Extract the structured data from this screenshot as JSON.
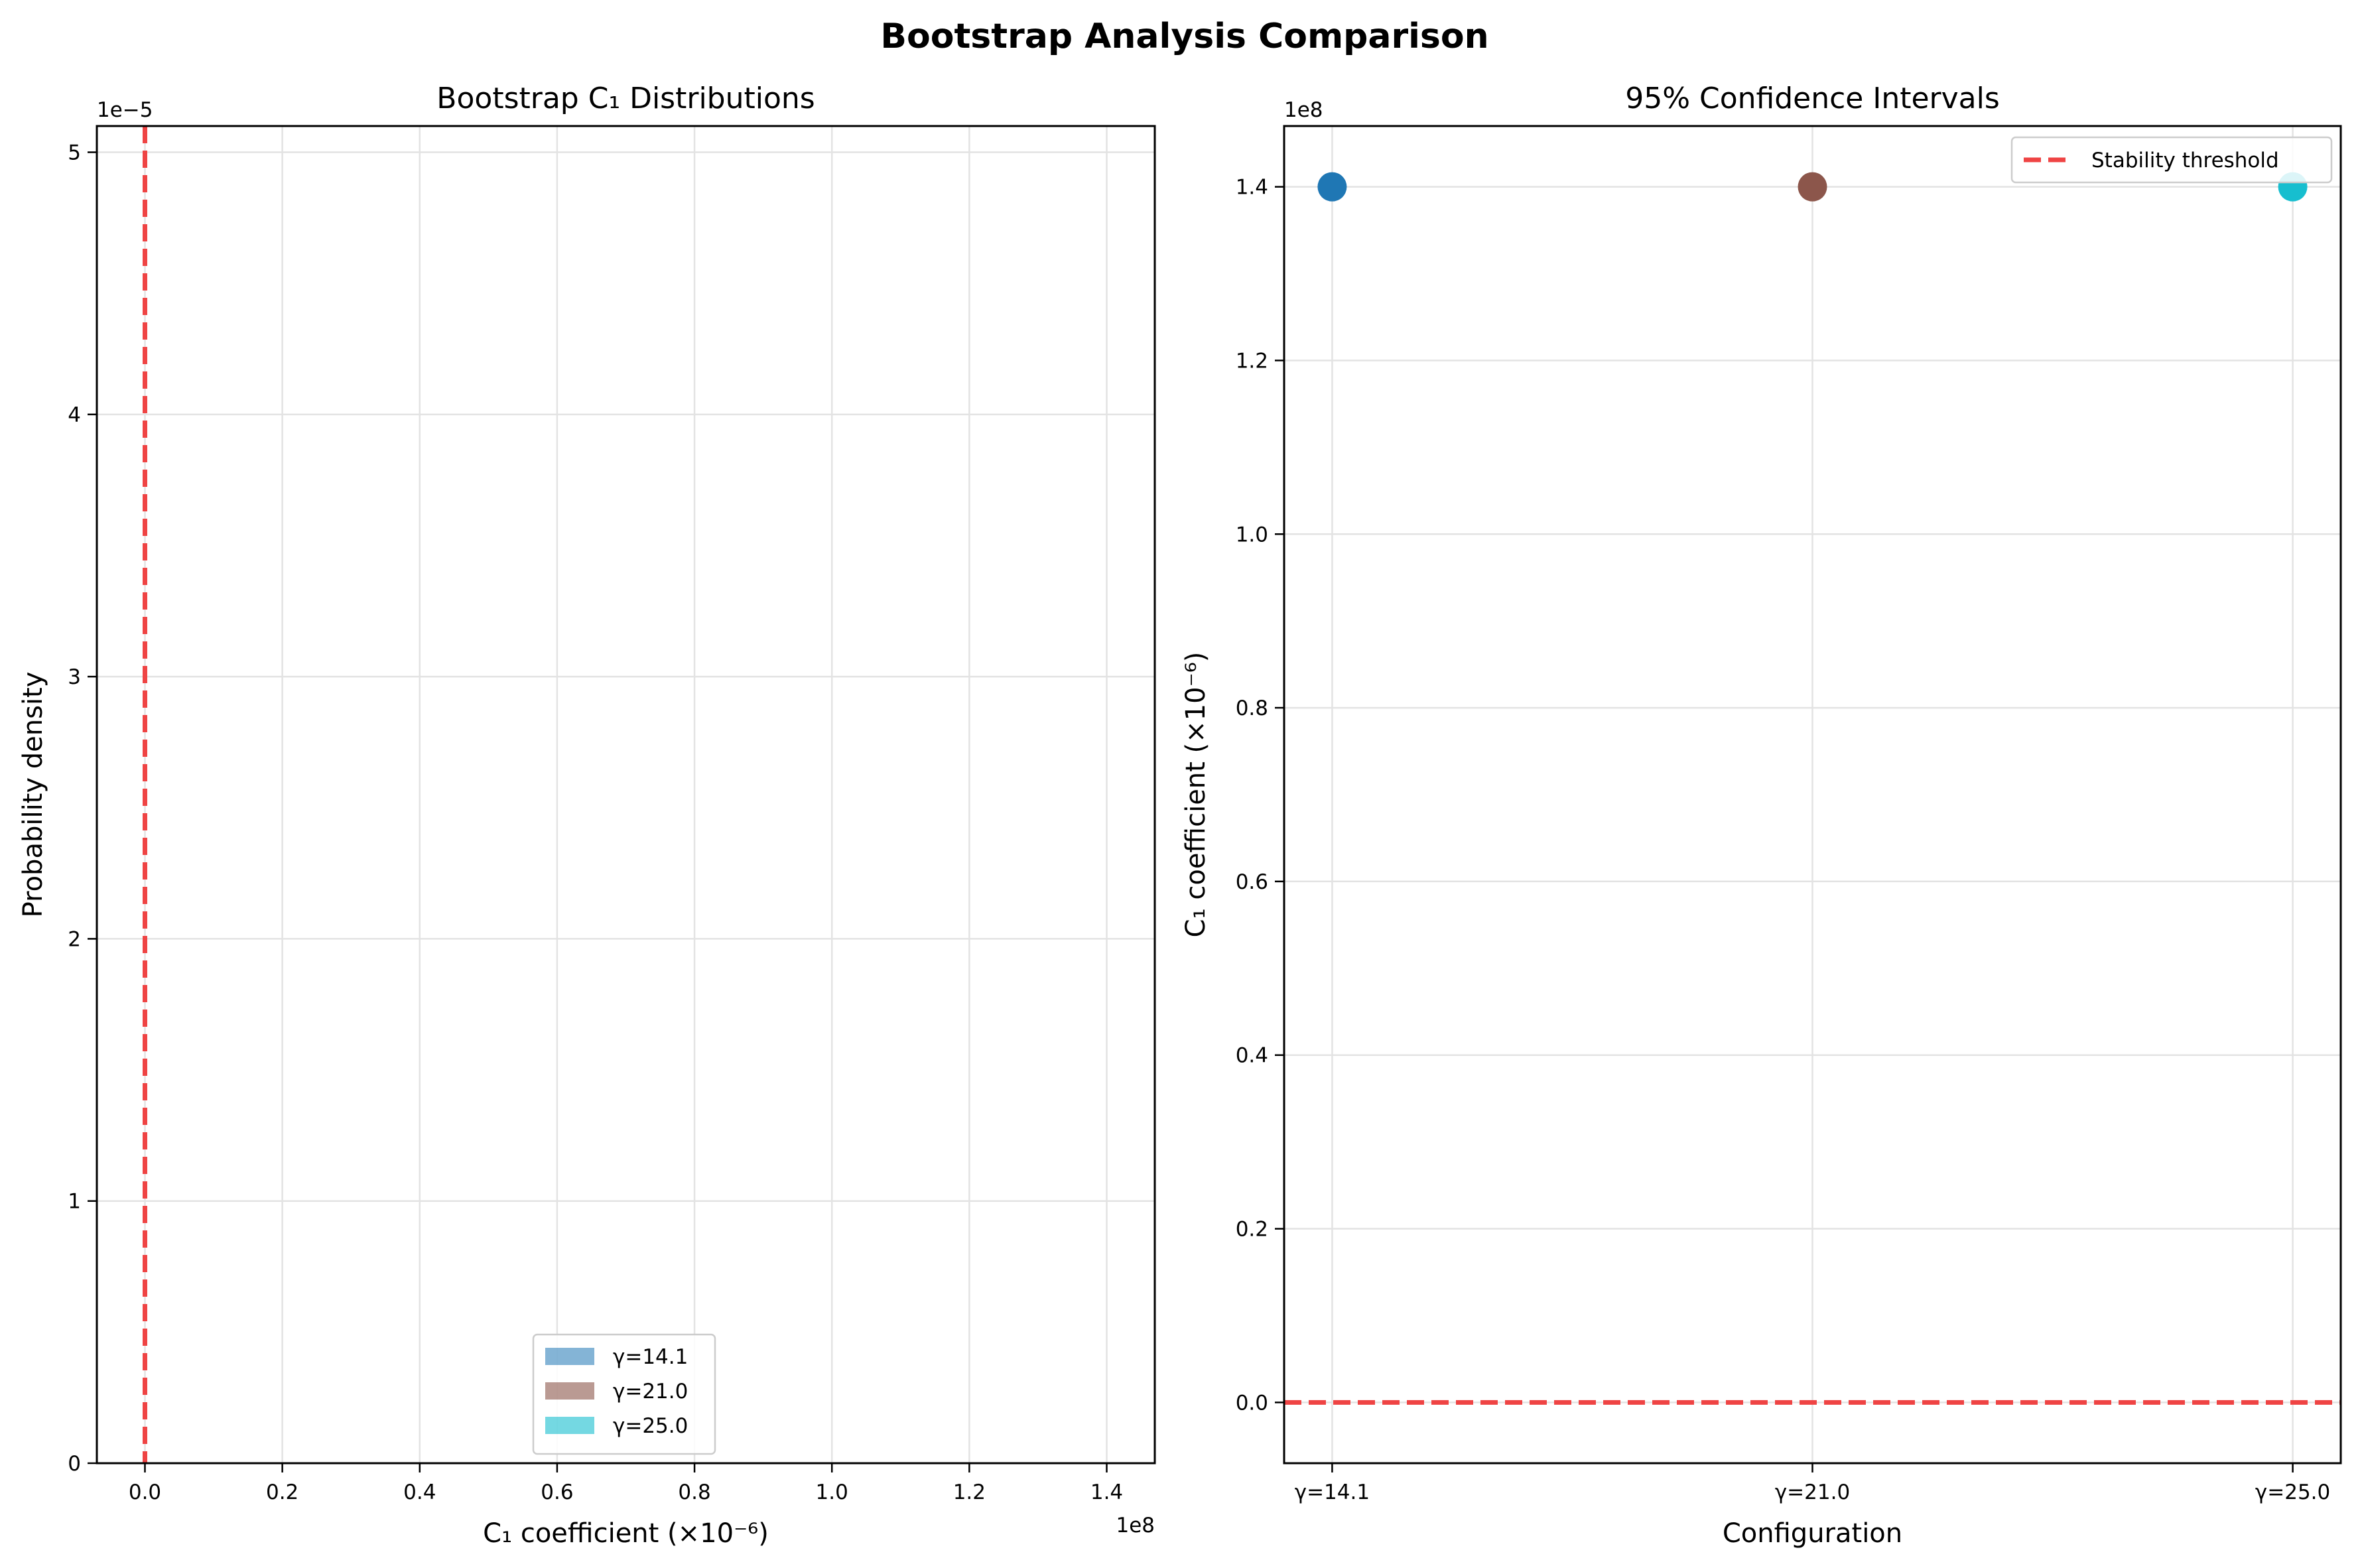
{
  "figure": {
    "title": "Bootstrap Analysis Comparison"
  },
  "colors": {
    "red_dashed": "#ef4444",
    "series_14_1": "#1f77b4",
    "series_21_0": "#8c564b",
    "series_25_0": "#17becf"
  },
  "chart_data": [
    {
      "type": "histogram",
      "title": "Bootstrap C₁ Distributions",
      "xlabel": "C₁ coefficient (×10⁻⁶)",
      "ylabel": "Probability density",
      "x_offset_text": "1e8",
      "y_offset_text": "1e−5",
      "xlim": [
        -0.07,
        1.47
      ],
      "ylim": [
        0,
        5.1
      ],
      "xticks": [
        0.0,
        0.2,
        0.4,
        0.6,
        0.8,
        1.0,
        1.2,
        1.4
      ],
      "xtick_labels": [
        "0.0",
        "0.2",
        "0.4",
        "0.6",
        "0.8",
        "1.0",
        "1.2",
        "1.4"
      ],
      "yticks": [
        0,
        1,
        2,
        3,
        4,
        5
      ],
      "ytick_labels": [
        "0",
        "1",
        "2",
        "3",
        "4",
        "5"
      ],
      "grid": true,
      "legend_position": "lower-center",
      "series": [
        {
          "name": "γ=14.1",
          "color": "#1f77b4",
          "alpha": 0.55,
          "values": []
        },
        {
          "name": "γ=21.0",
          "color": "#8c564b",
          "alpha": 0.6,
          "values": []
        },
        {
          "name": "γ=25.0",
          "color": "#17becf",
          "alpha": 0.6,
          "values": []
        }
      ],
      "vline": {
        "x": 0.0,
        "style": "dashed",
        "color": "#ef4444"
      }
    },
    {
      "type": "scatter",
      "title": "95% Confidence Intervals",
      "xlabel": "Configuration",
      "ylabel": "C₁ coefficient (×10⁻⁶)",
      "y_offset_text": "1e8",
      "categories": [
        "γ=14.1",
        "γ=21.0",
        "γ=25.0"
      ],
      "values": [
        1.4,
        1.4,
        1.4
      ],
      "point_colors": [
        "#1f77b4",
        "#8c564b",
        "#17becf"
      ],
      "ylim": [
        -0.07,
        1.47
      ],
      "yticks": [
        0.0,
        0.2,
        0.4,
        0.6,
        0.8,
        1.0,
        1.2,
        1.4
      ],
      "ytick_labels": [
        "0.0",
        "0.2",
        "0.4",
        "0.6",
        "0.8",
        "1.0",
        "1.2",
        "1.4"
      ],
      "grid": true,
      "legend_position": "top-right",
      "hline": {
        "y": 0.0,
        "style": "dashed",
        "color": "#ef4444",
        "label": "Stability threshold"
      }
    }
  ]
}
